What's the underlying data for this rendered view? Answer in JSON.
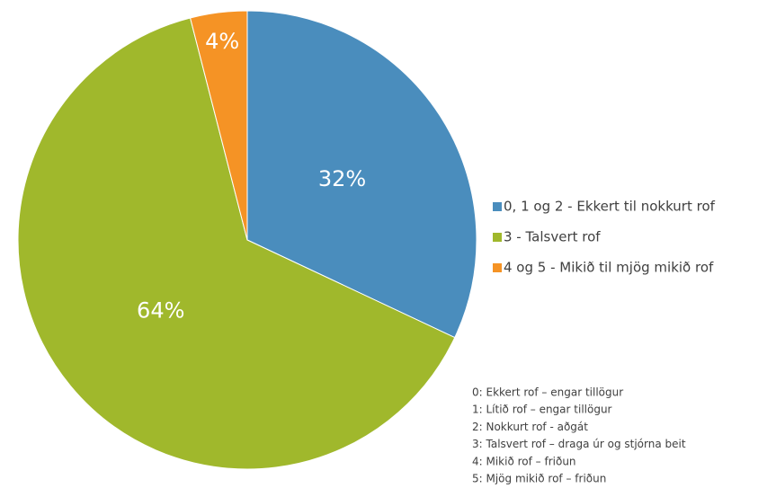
{
  "chart_data": {
    "type": "pie",
    "categories": [
      "0, 1 og 2 - Ekkert til nokkurt rof",
      "3 - Talsvert rof",
      "4 og 5 - Mikið til mjög mikið rof"
    ],
    "values": [
      32,
      64,
      4
    ],
    "value_labels": [
      "32%",
      "64%",
      "4%"
    ],
    "colors": [
      "#4a8dbd",
      "#a0b82c",
      "#f59325"
    ],
    "legend": "right",
    "annotations": [
      "0: Ekkert rof – engar tillögur",
      "1: Lítið rof – engar tillögur",
      "2: Nokkurt rof - aðgát",
      "3: Talsvert rof – draga úr og stjórna beit",
      "4: Mikið rof – friðun",
      "5: Mjög mikið rof – friðun"
    ]
  }
}
